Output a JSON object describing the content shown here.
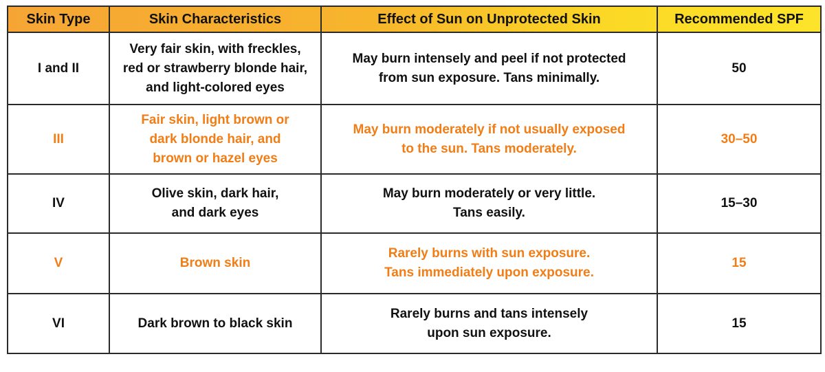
{
  "table": {
    "header": [
      "Skin Type",
      "Skin Characteristics",
      "Effect of Sun on Unprotected Skin",
      "Recommended SPF"
    ],
    "rows": [
      [
        [
          "I and II"
        ],
        [
          "Very fair skin, with freckles,",
          "red or strawberry blonde hair,",
          "and light-colored eyes"
        ],
        [
          "May burn intensely and peel if not protected",
          "from sun exposure. Tans minimally."
        ],
        [
          "50"
        ]
      ],
      [
        [
          "III"
        ],
        [
          "Fair skin, light brown or",
          "dark blonde hair, and",
          "brown or hazel eyes"
        ],
        [
          "May burn moderately if not usually exposed",
          "to the sun. Tans moderately."
        ],
        [
          "30–50"
        ]
      ],
      [
        [
          "IV"
        ],
        [
          "Olive skin, dark hair,",
          "and dark eyes"
        ],
        [
          "May burn moderately or very little.",
          "Tans easily."
        ],
        [
          "15–30"
        ]
      ],
      [
        [
          "V"
        ],
        [
          "Brown skin"
        ],
        [
          "Rarely burns with sun exposure.",
          "Tans immediately upon exposure."
        ],
        [
          "15"
        ]
      ],
      [
        [
          "VI"
        ],
        [
          "Dark brown to black skin"
        ],
        [
          "Rarely burns and tans intensely",
          "upon sun exposure."
        ],
        [
          "15"
        ]
      ]
    ]
  }
}
